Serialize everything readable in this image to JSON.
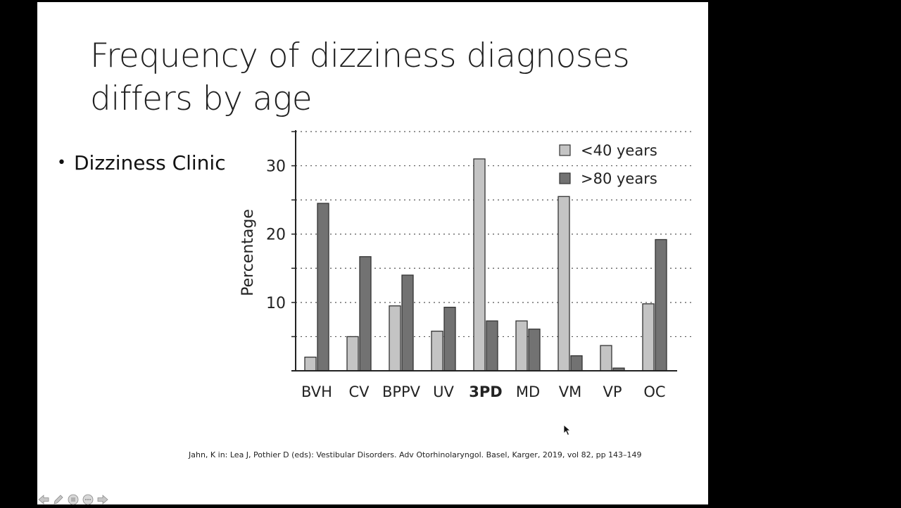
{
  "slide": {
    "title_line1": "Frequency of dizziness diagnoses",
    "title_line2": "differs by age",
    "bullet": "Dizziness Clinic",
    "citation": "Jahn, K in: Lea J, Pothier D (eds): Vestibular Disorders. Adv Otorhinolaryngol. Basel, Karger, 2019, vol 82, pp 143–149"
  },
  "chart_data": {
    "type": "bar",
    "categories": [
      "BVH",
      "CV",
      "BPPV",
      "UV",
      "3PD",
      "MD",
      "VM",
      "VP",
      "OC"
    ],
    "highlighted_category": "3PD",
    "series": [
      {
        "name": "<40 years",
        "color": "#c4c4c4",
        "values": [
          2,
          5,
          9.5,
          5.8,
          31,
          7.3,
          25.5,
          3.7,
          9.8
        ]
      },
      {
        "name": ">80 years",
        "color": "#727272",
        "values": [
          24.5,
          16.7,
          14,
          9.3,
          7.3,
          6.1,
          2.2,
          0.4,
          19.2
        ]
      }
    ],
    "ylabel": "Percentage",
    "xlabel": "",
    "ylim": [
      0,
      35
    ],
    "yticks": [
      10,
      20,
      30
    ],
    "grid": true,
    "legend_position": "top-right"
  },
  "icons": {
    "nav": [
      "arrow-left-icon",
      "pen-icon",
      "menu-icon",
      "more-icon",
      "arrow-right-icon"
    ]
  }
}
